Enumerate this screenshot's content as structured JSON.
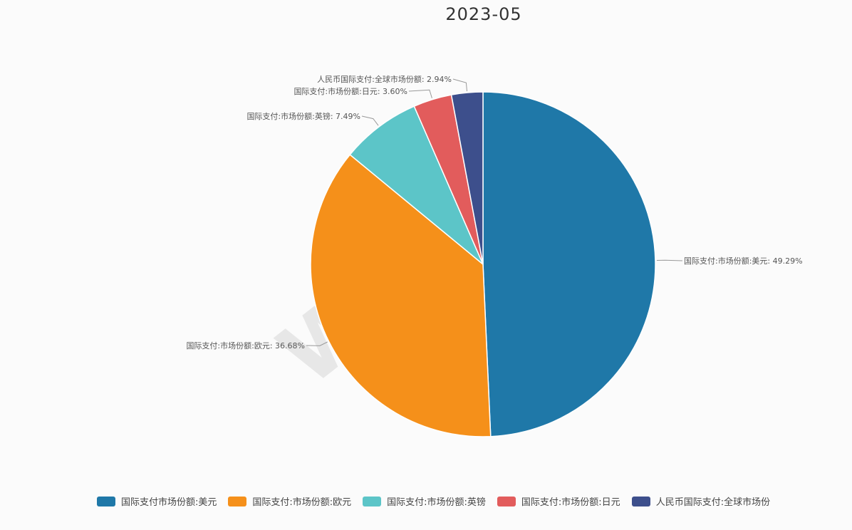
{
  "chart_data": {
    "type": "pie",
    "title": "2023-05",
    "slices": [
      {
        "name": "国际支付市场份额:美元",
        "value": 49.29,
        "label": "国际支付:市场份额:美元: 49.29%",
        "color": "#1f78a8"
      },
      {
        "name": "国际支付:市场份额:欧元",
        "value": 36.68,
        "label": "国际支付:市场份额:欧元: 36.68%",
        "color": "#f5901a"
      },
      {
        "name": "国际支付:市场份额:英镑",
        "value": 7.49,
        "label": "国际支付:市场份额:英镑: 7.49%",
        "color": "#5cc5c8"
      },
      {
        "name": "国际支付:市场份额:日元",
        "value": 3.6,
        "label": "国际支付:市场份额:日元: 3.60%",
        "color": "#e25c5c"
      },
      {
        "name": "人民币国际支付:全球市场份",
        "value": 2.94,
        "label": "人民币国际支付:全球市场份额: 2.94%",
        "color": "#3d4f8c"
      }
    ],
    "legend_position": "bottom"
  },
  "watermark": "WikiFX"
}
